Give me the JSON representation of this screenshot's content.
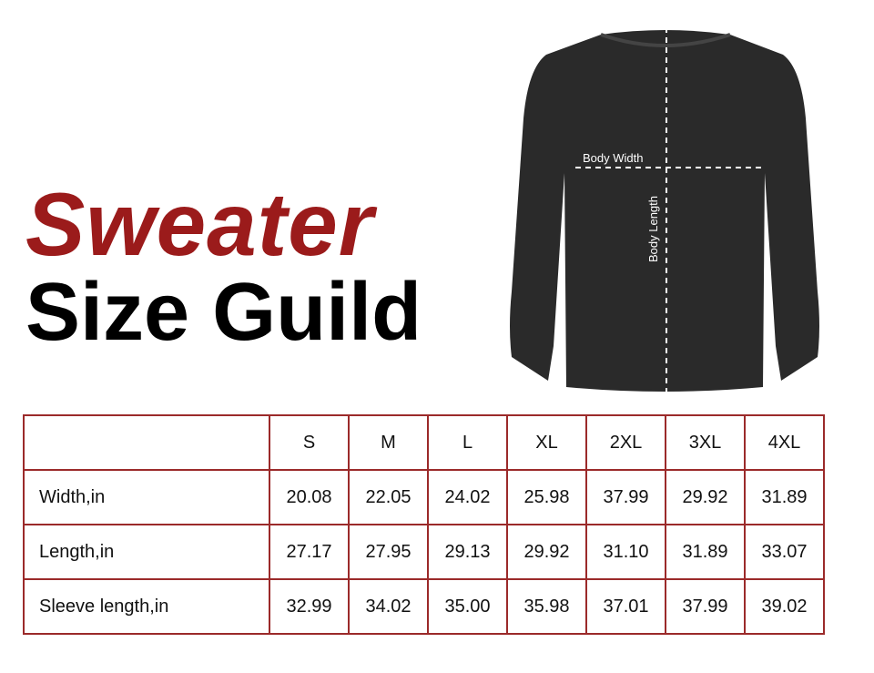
{
  "title": {
    "line1": "Sweater",
    "line2": "Size Guild"
  },
  "colors": {
    "accent": "#9b1b1b",
    "border": "#9b2a2a",
    "garment": "#2a2a2a"
  },
  "garment": {
    "label_width": "Body Width",
    "label_length": "Body Length"
  },
  "table": {
    "headers": [
      "",
      "S",
      "M",
      "L",
      "XL",
      "2XL",
      "3XL",
      "4XL"
    ],
    "rows": [
      {
        "label": "Width,in",
        "values": [
          "20.08",
          "22.05",
          "24.02",
          "25.98",
          "37.99",
          "29.92",
          "31.89"
        ]
      },
      {
        "label": "Length,in",
        "values": [
          "27.17",
          "27.95",
          "29.13",
          "29.92",
          "31.10",
          "31.89",
          "33.07"
        ]
      },
      {
        "label": "Sleeve length,in",
        "values": [
          "32.99",
          "34.02",
          "35.00",
          "35.98",
          "37.01",
          "37.99",
          "39.02"
        ]
      }
    ]
  }
}
